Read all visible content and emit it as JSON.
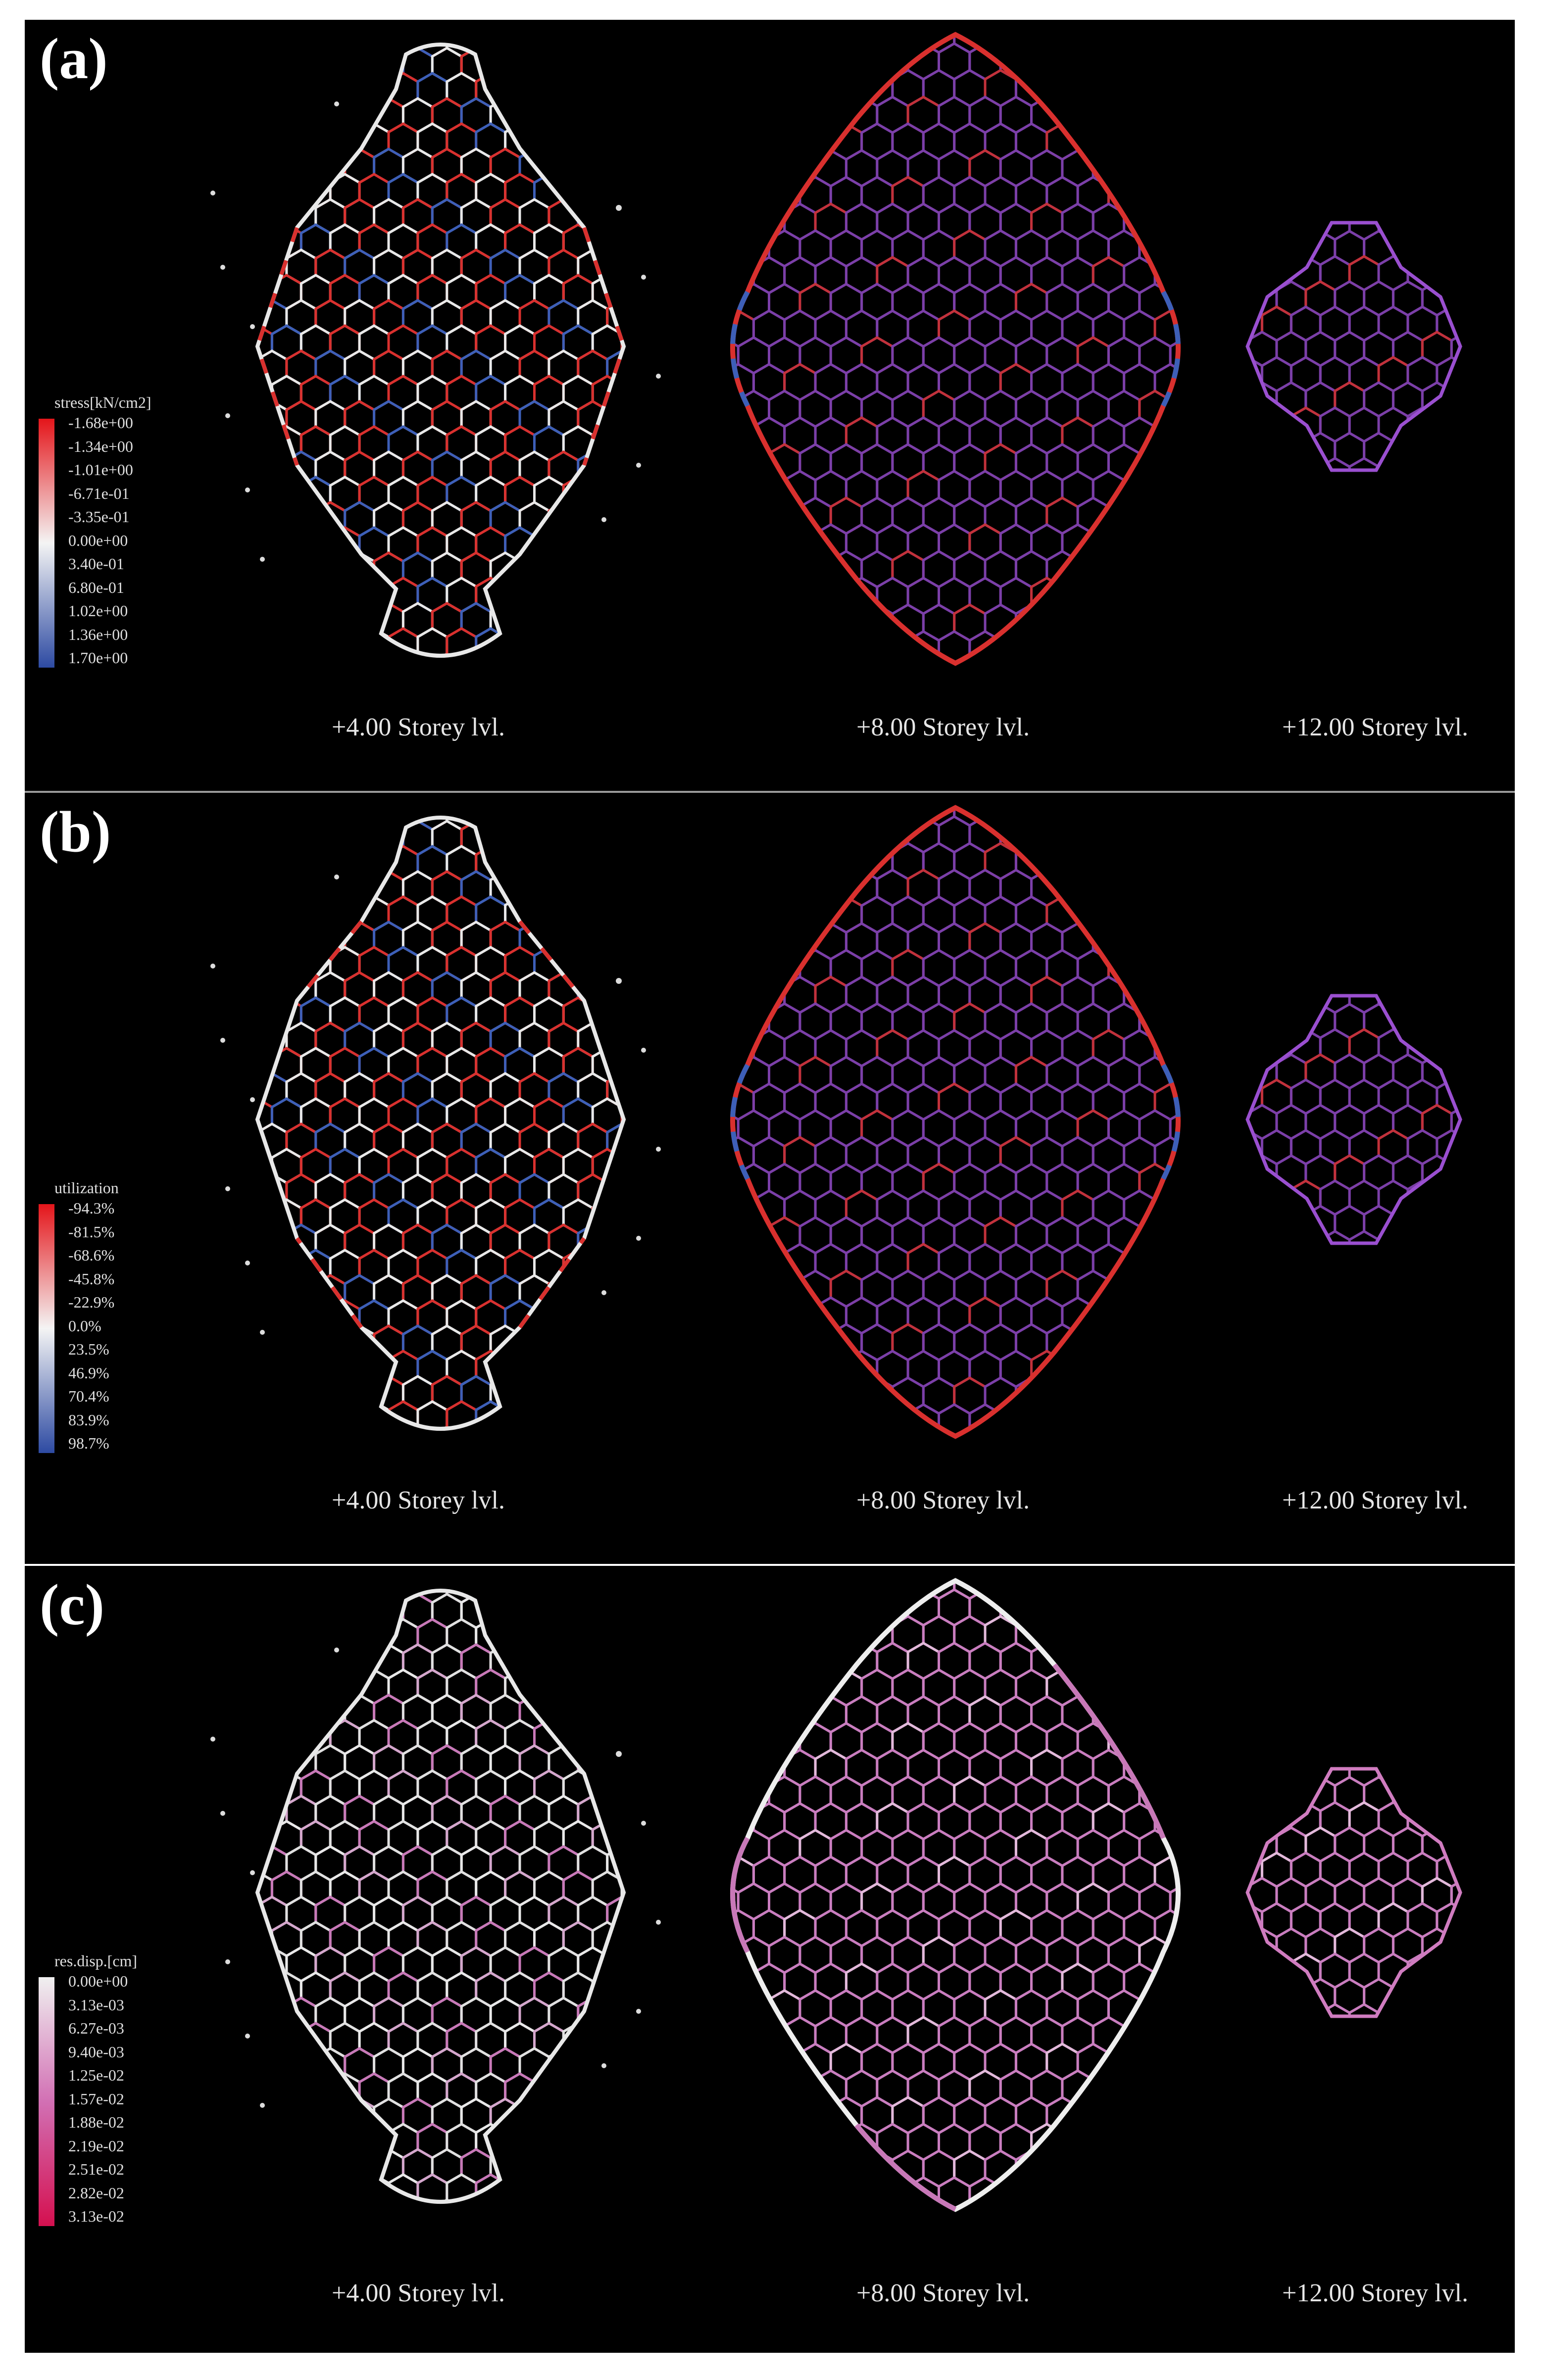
{
  "panels": [
    {
      "letter": "(a)",
      "legend_title": "stress[kN/cm2]",
      "legend_ticks": [
        "-1.68e+00",
        "-1.34e+00",
        "-1.01e+00",
        "-6.71e-01",
        "-3.35e-01",
        "0.00e+00",
        "3.40e-01",
        "6.80e-01",
        "1.02e+00",
        "1.36e+00",
        "1.70e+00"
      ],
      "legend_colors": [
        "#e4151a",
        "#f4f4f4",
        "#2d4aa2"
      ],
      "storey_labels": [
        "+4.00 Storey lvl.",
        "+8.00 Storey lvl.",
        "+12.00 Storey lvl."
      ]
    },
    {
      "letter": "(b)",
      "legend_title": "utilization",
      "legend_ticks": [
        "-94.3%",
        "-81.5%",
        "-68.6%",
        "-45.8%",
        "-22.9%",
        "0.0%",
        "23.5%",
        "46.9%",
        "70.4%",
        "83.9%",
        "98.7%"
      ],
      "legend_colors": [
        "#e4151a",
        "#f4f4f4",
        "#2d4aa2"
      ],
      "storey_labels": [
        "+4.00 Storey lvl.",
        "+8.00 Storey lvl.",
        "+12.00 Storey lvl."
      ]
    },
    {
      "letter": "(c)",
      "legend_title": "res.disp.[cm]",
      "legend_ticks": [
        "0.00e+00",
        "3.13e-03",
        "6.27e-03",
        "9.40e-03",
        "1.25e-02",
        "1.57e-02",
        "1.88e-02",
        "2.19e-02",
        "2.51e-02",
        "2.82e-02",
        "3.13e-02"
      ],
      "legend_colors": [
        "#f0f0f0",
        "#d270b4",
        "#d4104f"
      ],
      "storey_labels": [
        "+4.00 Storey lvl.",
        "+8.00 Storey lvl.",
        "+12.00 Storey lvl."
      ]
    }
  ]
}
